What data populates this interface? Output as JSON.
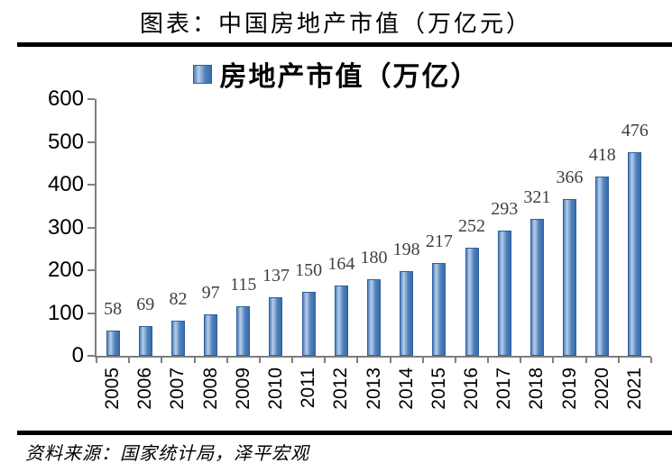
{
  "page": {
    "title": "图表：中国房地产市值（万亿元）",
    "footer": "资料来源：国家统计局，泽平宏观"
  },
  "chart_data": {
    "type": "bar",
    "title": "中国房地产市值（万亿元）",
    "legend": "房地产市值（万亿）",
    "legend_position": "top-center",
    "categories": [
      "2005",
      "2006",
      "2007",
      "2008",
      "2009",
      "2010",
      "2011",
      "2012",
      "2013",
      "2014",
      "2015",
      "2016",
      "2017",
      "2018",
      "2019",
      "2020",
      "2021"
    ],
    "values": [
      58,
      69,
      82,
      97,
      115,
      137,
      150,
      164,
      180,
      198,
      217,
      252,
      293,
      321,
      366,
      418,
      476
    ],
    "xlabel": "",
    "ylabel": "",
    "ylim": [
      0,
      600
    ],
    "yticks": [
      0,
      100,
      200,
      300,
      400,
      500,
      600
    ],
    "grid": false,
    "x_tick_label_rotation": -90,
    "colors": {
      "bar_fill": "#4f81bd",
      "bar_fill_light": "#b7cfe9",
      "bar_fill_dark": "#3a6ca8",
      "bar_border": "#2f5f9e",
      "axis": "#7f7f7f",
      "value_label": "#3f3f3f",
      "tick_label": "#000000",
      "rule": "#000000"
    }
  }
}
